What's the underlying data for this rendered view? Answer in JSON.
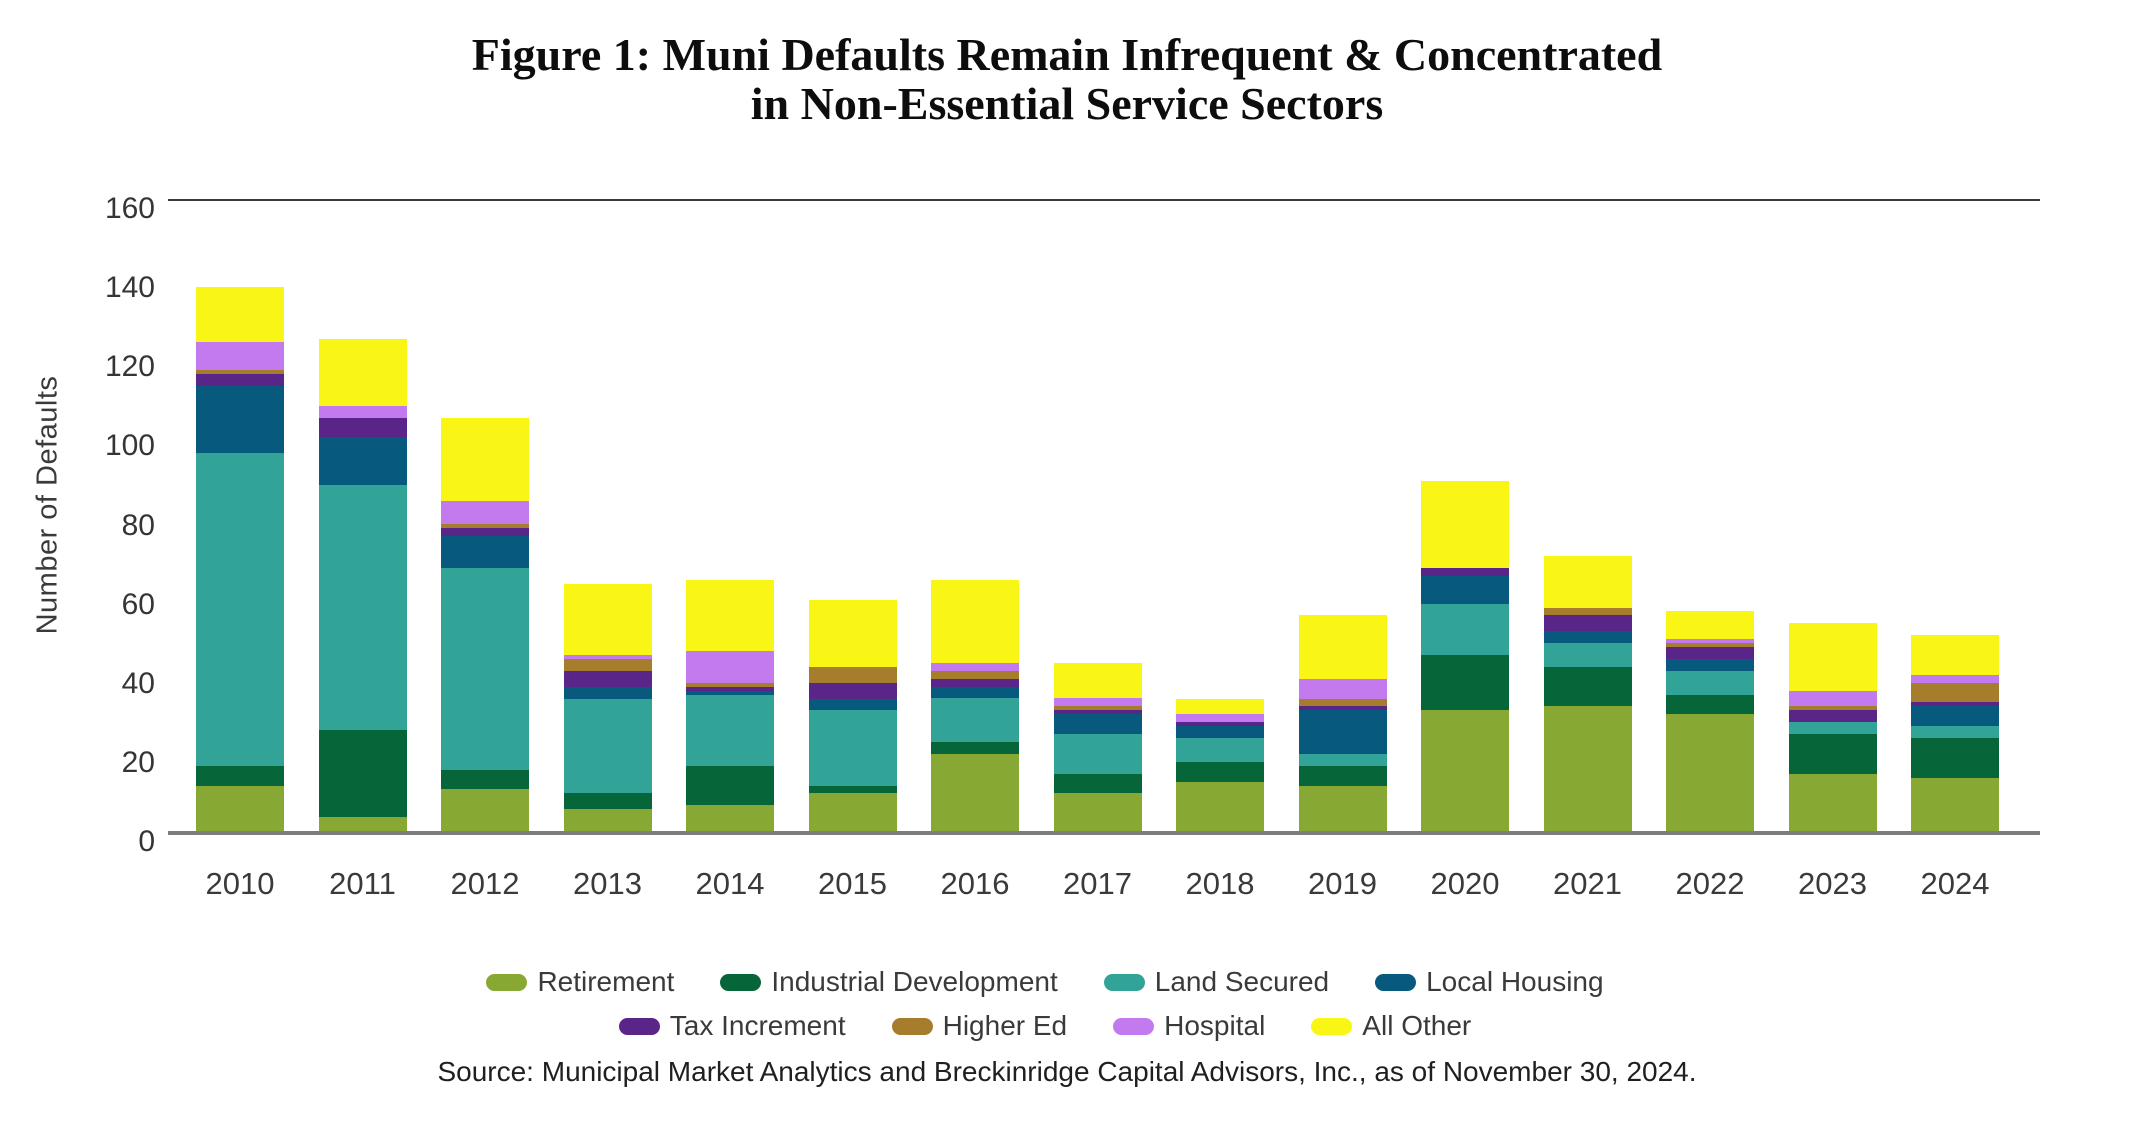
{
  "title": {
    "line1": "Figure 1: Muni Defaults Remain Infrequent & Concentrated",
    "line2": "in Non-Essential Service Sectors"
  },
  "y_axis": {
    "label": "Number of Defaults",
    "ticks": [
      0,
      20,
      40,
      60,
      80,
      100,
      120,
      140,
      160
    ],
    "max": 160
  },
  "source": "Source: Municipal Market Analytics and Breckinridge Capital Advisors, Inc., as of November 30, 2024.",
  "chart_data": {
    "type": "bar",
    "stacked": true,
    "title": "Figure 1: Muni Defaults Remain Infrequent & Concentrated in Non-Essential Service Sectors",
    "xlabel": "",
    "ylabel": "Number of Defaults",
    "ylim": [
      0,
      160
    ],
    "grid": false,
    "legend_position": "bottom",
    "categories": [
      "2010",
      "2011",
      "2012",
      "2013",
      "2014",
      "2015",
      "2016",
      "2017",
      "2018",
      "2019",
      "2020",
      "2021",
      "2022",
      "2023",
      "2024"
    ],
    "series": [
      {
        "name": "Retirement",
        "color": "#87A934",
        "values": [
          12,
          4,
          11,
          6,
          7,
          10,
          20,
          10,
          13,
          12,
          31,
          32,
          30,
          15,
          14
        ]
      },
      {
        "name": "Industrial Development",
        "color": "#066539",
        "values": [
          5,
          22,
          5,
          4,
          10,
          2,
          3,
          5,
          5,
          5,
          14,
          10,
          5,
          10,
          10
        ]
      },
      {
        "name": "Land Secured",
        "color": "#31A397",
        "values": [
          79,
          62,
          51,
          24,
          18,
          19,
          11,
          10,
          6,
          3,
          13,
          6,
          6,
          3,
          3
        ]
      },
      {
        "name": "Local Housing",
        "color": "#07597D",
        "values": [
          17,
          12,
          8,
          3,
          1,
          3,
          3,
          5,
          3,
          11,
          7,
          3,
          3,
          0,
          5
        ]
      },
      {
        "name": "Tax Increment",
        "color": "#5A2588",
        "values": [
          3,
          5,
          2,
          4,
          1,
          4,
          2,
          1,
          1,
          1,
          2,
          4,
          3,
          3,
          1
        ]
      },
      {
        "name": "Higher Ed",
        "color": "#A67C2D",
        "values": [
          1,
          0,
          1,
          3,
          1,
          4,
          2,
          1,
          0,
          2,
          0,
          2,
          1,
          1,
          5
        ]
      },
      {
        "name": "Hospital",
        "color": "#C47AEF",
        "values": [
          7,
          3,
          6,
          1,
          8,
          0,
          2,
          2,
          2,
          5,
          0,
          0,
          1,
          4,
          2
        ]
      },
      {
        "name": "All Other",
        "color": "#F9F514",
        "values": [
          14,
          17,
          21,
          18,
          18,
          17,
          21,
          9,
          4,
          16,
          22,
          13,
          7,
          17,
          10
        ]
      }
    ],
    "totals": [
      138,
      125,
      105,
      63,
      64,
      59,
      64,
      43,
      34,
      55,
      89,
      70,
      56,
      53,
      50
    ]
  }
}
